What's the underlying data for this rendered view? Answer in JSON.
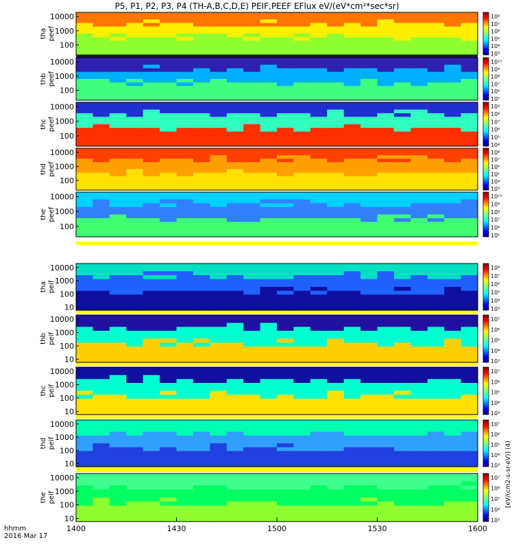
{
  "chart_data": {
    "type": "heatmap",
    "title": "P5, P1, P2, P3, P4 (TH-A,B,C,D,E) PEIF,PEEF EFlux eV/(eV*cm²*sec*sr)",
    "x_ticks": [
      "1400",
      "1430",
      "1500",
      "1530",
      "1600"
    ],
    "x_range_minutes": [
      0,
      120
    ],
    "x_caption": [
      "hhmm",
      "2016 Mar 17"
    ],
    "colorbar_label": "[eV/(cm2-s-sr-eV)] (4)",
    "y_scale": "log",
    "panels": [
      {
        "label": [
          "tha",
          "peef"
        ],
        "yticks": [
          "10000",
          "1000",
          "100"
        ],
        "cbar": [
          "10⁸",
          "10⁷",
          "10⁶",
          "10⁵",
          "10⁴",
          "10³"
        ],
        "palette": [
          "#ff7700",
          "#ffee00",
          "#90ff30"
        ],
        "min_axis": 20
      },
      {
        "label": [
          "thb",
          "peef"
        ],
        "yticks": [
          "10000",
          "1000",
          "100"
        ],
        "cbar": [
          "10¹⁰",
          "10⁹",
          "10⁸",
          "10⁷",
          "10⁶",
          "10⁵"
        ],
        "palette": [
          "#3020b0",
          "#00b0ff",
          "#40ff80"
        ],
        "min_axis": 20
      },
      {
        "label": [
          "thc",
          "peef"
        ],
        "yticks": [
          "10000",
          "1000",
          "100"
        ],
        "cbar": [
          "10⁹",
          "10⁸",
          "10⁷",
          "10⁶",
          "10⁵",
          "10⁴"
        ],
        "palette": [
          "#2030d0",
          "#30ffc0",
          "#ff3000"
        ],
        "min_axis": 20
      },
      {
        "label": [
          "thd",
          "peef"
        ],
        "yticks": [
          "10000",
          "1000",
          "100"
        ],
        "cbar": [
          "10⁸",
          "10⁷",
          "10⁶",
          "10⁵",
          "10⁴",
          "10³"
        ],
        "palette": [
          "#ff4000",
          "#ffa000",
          "#ffe000"
        ],
        "min_axis": 20
      },
      {
        "label": [
          "the",
          "peef"
        ],
        "yticks": [
          "10000",
          "1000",
          "100"
        ],
        "cbar": [
          "10¹⁰",
          "10⁹",
          "10⁸",
          "10⁷",
          "10⁶",
          "10⁵"
        ],
        "palette": [
          "#00d0ff",
          "#3080ff",
          "#40ff70"
        ],
        "min_axis": 20
      },
      {
        "label": [
          "tha",
          "peif"
        ],
        "yticks": [
          "10000",
          "1000",
          "100",
          "10"
        ],
        "cbar": [
          "10⁸",
          "10⁷",
          "10⁶",
          "10⁵",
          "10⁴",
          "10³"
        ],
        "palette": [
          "#00e0c0",
          "#2060ff",
          "#1010a0"
        ],
        "min_axis": 6
      },
      {
        "label": [
          "thb",
          "peif"
        ],
        "yticks": [
          "10000",
          "1000",
          "100",
          "10"
        ],
        "cbar": [
          "10⁷",
          "10⁶",
          "10⁵",
          "10⁴",
          "10³"
        ],
        "palette": [
          "#2010a0",
          "#00ffd0",
          "#ffd000"
        ],
        "min_axis": 6
      },
      {
        "label": [
          "thc",
          "peif"
        ],
        "yticks": [
          "10000",
          "1000",
          "100",
          "10"
        ],
        "cbar": [
          "10⁷",
          "10⁶",
          "10⁵",
          "10⁴",
          "10³"
        ],
        "palette": [
          "#1010a0",
          "#00ffd0",
          "#ffe000"
        ],
        "min_axis": 6
      },
      {
        "label": [
          "thd",
          "peif"
        ],
        "yticks": [
          "10000",
          "1000",
          "100",
          "10"
        ],
        "cbar": [
          "10⁷",
          "10⁶",
          "10⁵",
          "10⁴",
          "10³"
        ],
        "palette": [
          "#00ffb0",
          "#30a0ff",
          "#2040e0"
        ],
        "min_axis": 6
      },
      {
        "label": [
          "the",
          "peif"
        ],
        "yticks": [
          "10000",
          "1000",
          "100",
          "10"
        ],
        "cbar": [
          "10⁷",
          "10⁶",
          "10⁵",
          "10⁴",
          "10³"
        ],
        "palette": [
          "#40ff90",
          "#00ff60",
          "#90ff30"
        ],
        "min_axis": 6
      }
    ]
  },
  "colors": {
    "jet": [
      "#000083",
      "#0000ff",
      "#0080ff",
      "#00ffff",
      "#80ff80",
      "#ffff00",
      "#ff8000",
      "#ff0000",
      "#800000"
    ]
  }
}
